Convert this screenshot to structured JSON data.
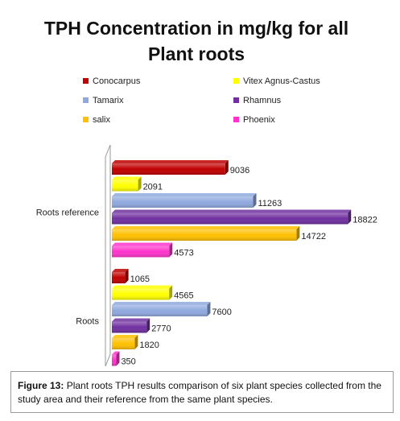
{
  "chart_data": {
    "type": "bar",
    "orientation": "horizontal",
    "title_lines": [
      "TPH Concentration in mg/kg for all",
      "Plant roots"
    ],
    "categories": [
      "Roots reference",
      "Roots"
    ],
    "series": [
      {
        "name": "Conocarpus",
        "color": "#c00000",
        "values": [
          9036,
          1065
        ]
      },
      {
        "name": "Vitex Agnus-Castus",
        "color": "#ffff00",
        "values": [
          2091,
          4565
        ]
      },
      {
        "name": "Tamarix",
        "color": "#8fa9de",
        "values": [
          11263,
          7600
        ]
      },
      {
        "name": "Rhamnus",
        "color": "#7030a0",
        "values": [
          18822,
          2770
        ]
      },
      {
        "name": "salix",
        "color": "#ffc000",
        "values": [
          14722,
          1820
        ]
      },
      {
        "name": "Phoenix",
        "color": "#ff33cc",
        "values": [
          4573,
          350
        ]
      }
    ],
    "xlim": [
      0,
      19000
    ],
    "legend_position": "top",
    "grid": false
  },
  "caption": {
    "label": "Figure 13:",
    "text": " Plant roots TPH results comparison of six plant species collected from the study area and their reference from the same plant species."
  }
}
